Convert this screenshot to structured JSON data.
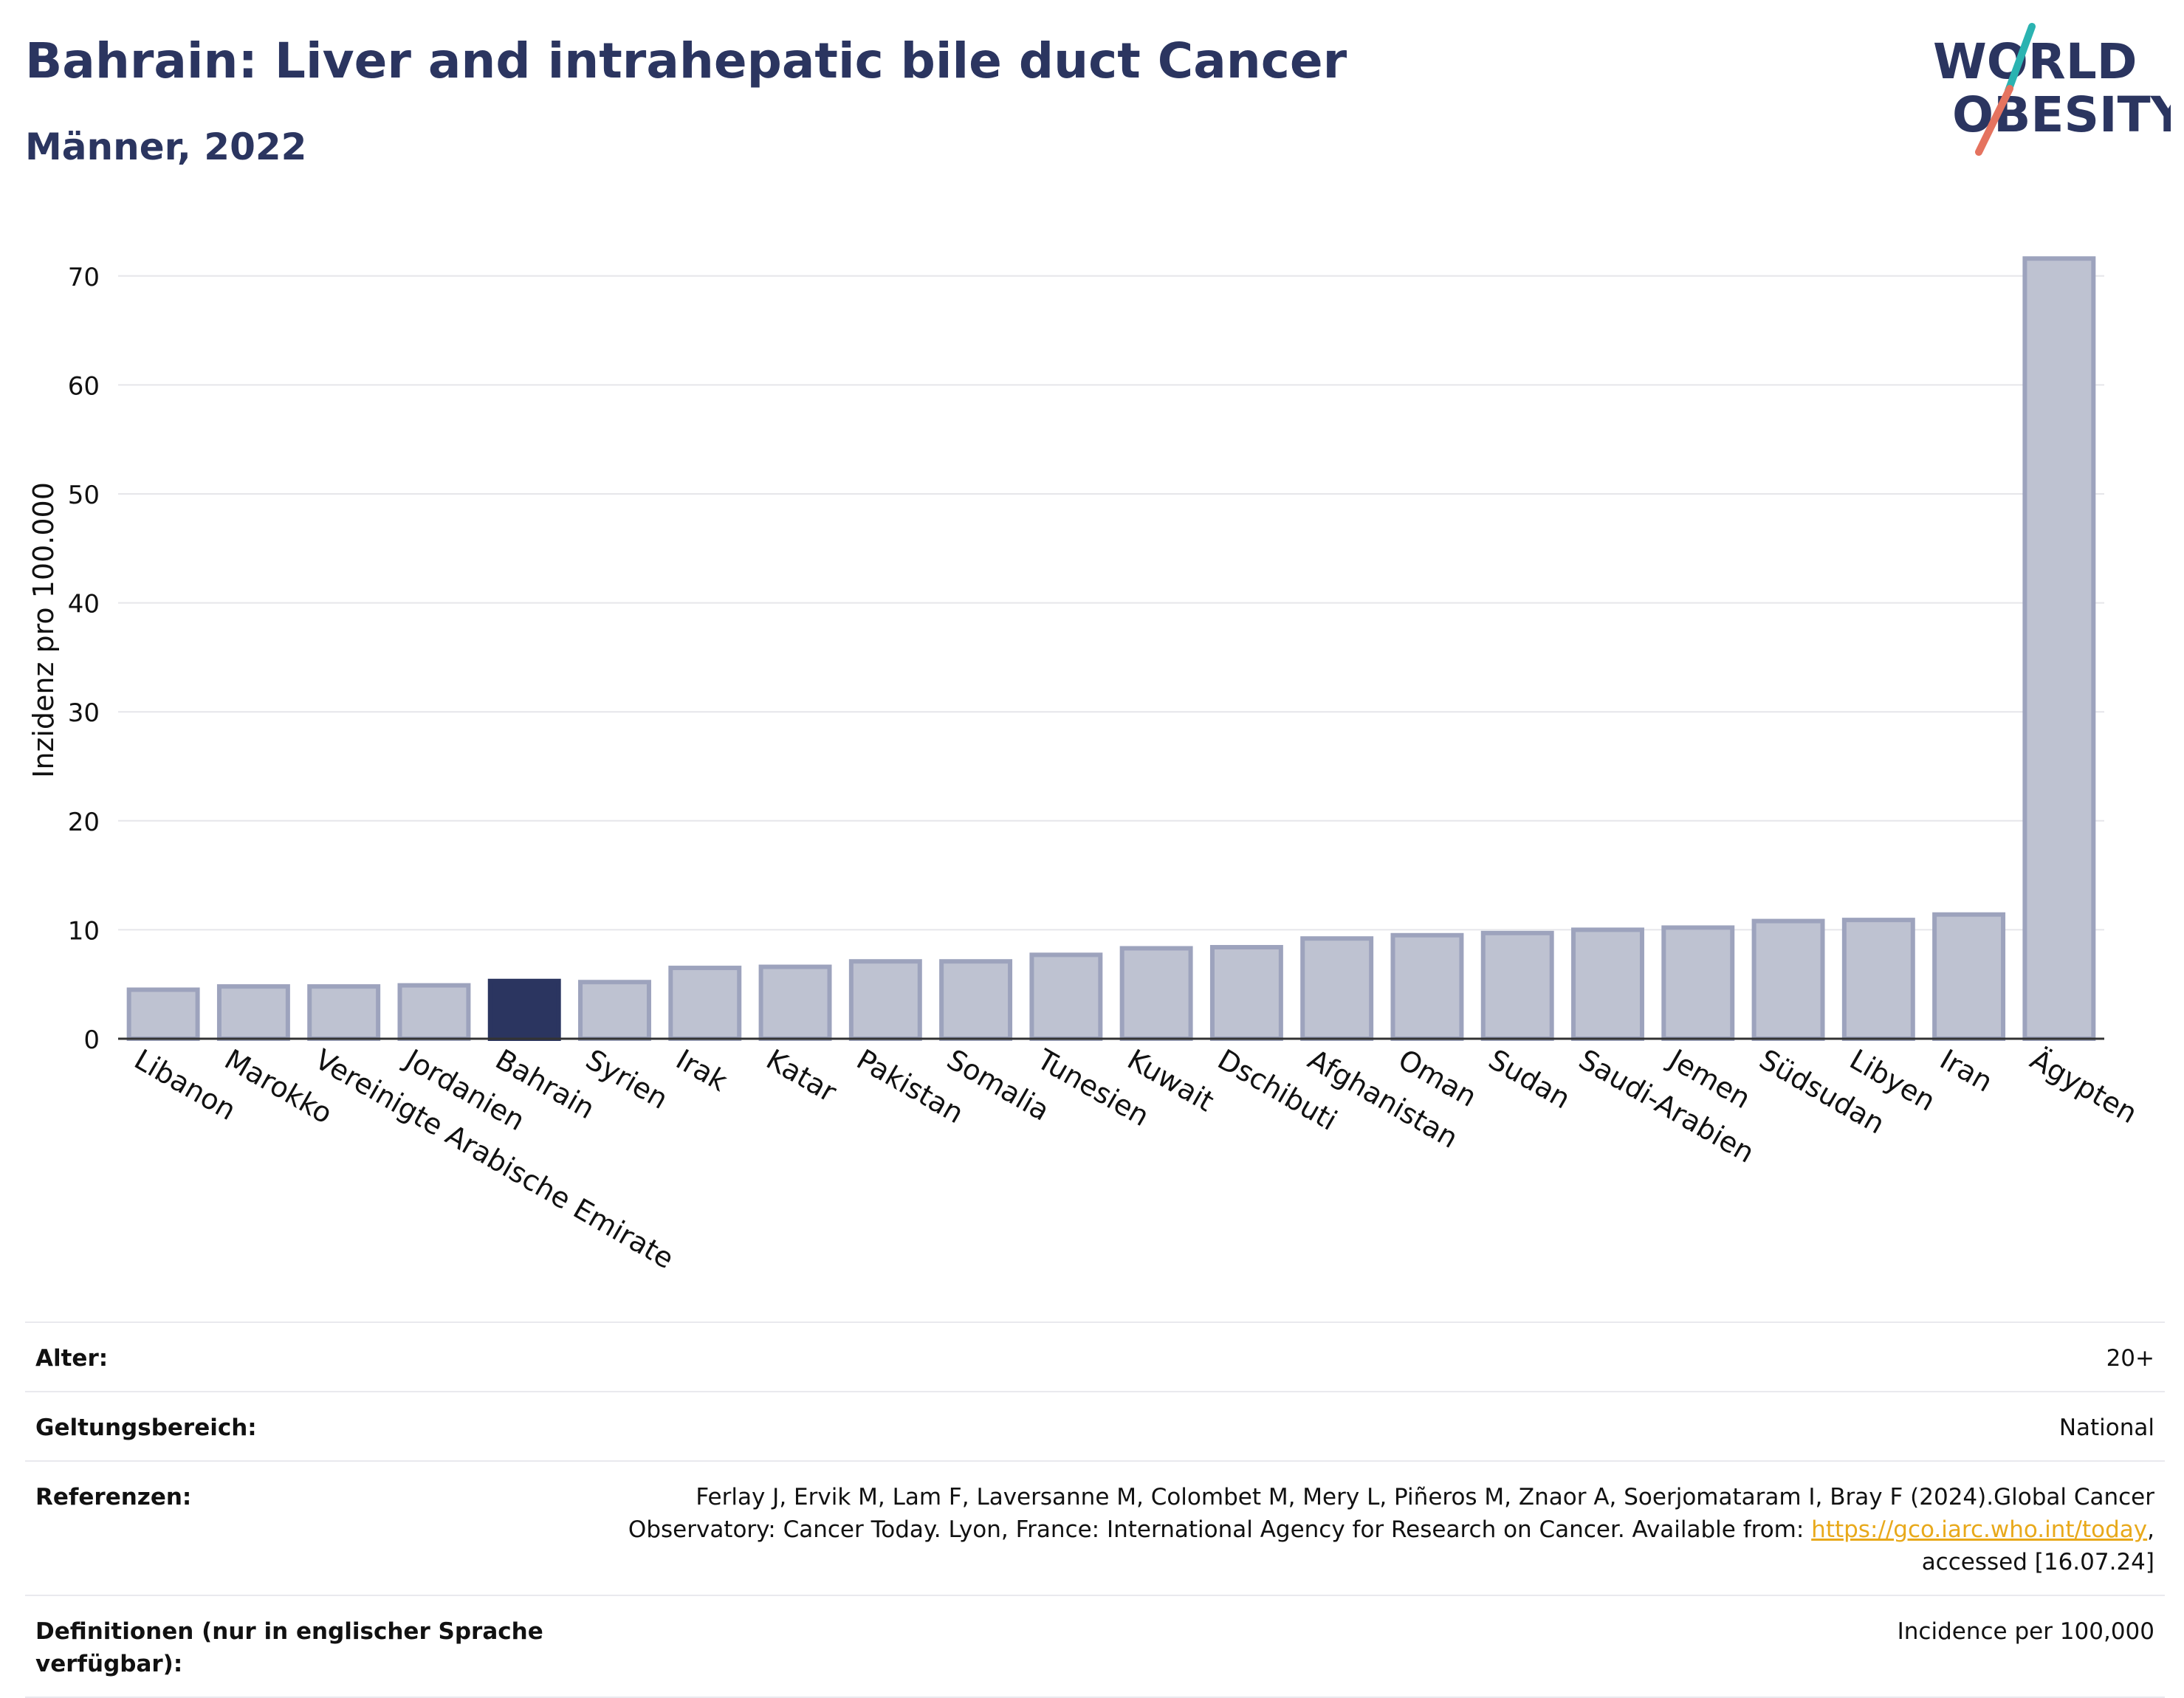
{
  "header": {
    "title": "Bahrain: Liver and intrahepatic bile duct Cancer",
    "subtitle": "Männer, 2022"
  },
  "logo": {
    "line1": "WORLD",
    "line2": "OBESITY",
    "colors": {
      "text": "#2b3560",
      "slash_teal": "#2bb3b1",
      "slash_coral": "#e5735f"
    }
  },
  "chart_data": {
    "type": "bar",
    "ylabel": "Inzidenz pro 100.000",
    "xlabel": "",
    "ylim": [
      0,
      75
    ],
    "yticks": [
      0,
      10,
      20,
      30,
      40,
      50,
      60,
      70
    ],
    "grid": true,
    "highlight": "Bahrain",
    "colors": {
      "bar": "#bec2d1",
      "bar_edge": "#9da3bd",
      "highlight": "#2b3560",
      "grid": "#e6e6ea",
      "axis": "#333333"
    },
    "categories": [
      "Libanon",
      "Marokko",
      "Vereinigte Arabische Emirate",
      "Jordanien",
      "Bahrain",
      "Syrien",
      "Irak",
      "Katar",
      "Pakistan",
      "Somalia",
      "Tunesien",
      "Kuwait",
      "Dschibuti",
      "Afghanistan",
      "Oman",
      "Sudan",
      "Saudi-Arabien",
      "Jemen",
      "Südsudan",
      "Libyen",
      "Iran",
      "Ägypten"
    ],
    "values": [
      4.5,
      4.8,
      4.8,
      4.9,
      5.3,
      5.2,
      6.5,
      6.6,
      7.1,
      7.1,
      7.7,
      8.3,
      8.4,
      9.2,
      9.5,
      9.7,
      10.0,
      10.2,
      10.8,
      10.9,
      11.4,
      71.6
    ]
  },
  "meta": {
    "age_label": "Alter:",
    "age_value": "20+",
    "scope_label": "Geltungsbereich:",
    "scope_value": "National",
    "ref_label": "Referenzen:",
    "ref_text": "Ferlay J, Ervik M, Lam F, Laversanne M, Colombet M, Mery L, Piñeros M, Znaor A, Soerjomataram I, Bray F (2024).Global Cancer Observatory: Cancer Today. Lyon, France: International Agency for Research on Cancer. Available from: ",
    "ref_link": "https://gco.iarc.who.int/today",
    "ref_suffix": ", accessed [16.07.24]",
    "def_label": "Definitionen (nur in englischer Sprache verfügbar):",
    "def_value": "Incidence per 100,000"
  }
}
